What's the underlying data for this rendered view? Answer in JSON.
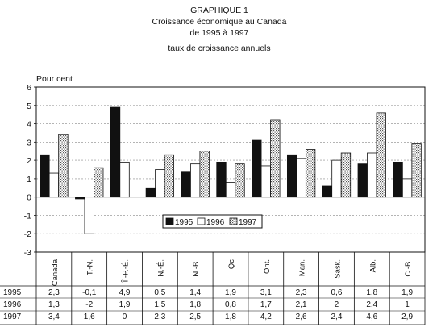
{
  "header": {
    "line1": "GRAPHIQUE 1",
    "line2": "Croissance économique au Canada",
    "line3": "de 1995 à 1997",
    "line4": "taux de croissance annuels"
  },
  "colors": {
    "s1995": "#111111",
    "s1996": "#ffffff",
    "s1997": "#d8d8d8"
  },
  "chart_data": {
    "type": "bar",
    "title": "GRAPHIQUE 1",
    "subtitle": "Croissance économique au Canada de 1995 à 1997 — taux de croissance annuels",
    "ylabel": "Pour cent",
    "xlabel": "",
    "ylim": [
      -3,
      6
    ],
    "yticks": [
      "6",
      "5",
      "4",
      "3",
      "2",
      "1",
      "0",
      "-1",
      "-2",
      "-3"
    ],
    "grid": true,
    "legend_position": "center",
    "categories": [
      "Canada",
      "T.-N.",
      "Î.-P.-É.",
      "N.-É.",
      "N.-B.",
      "Qc",
      "Ont.",
      "Man.",
      "Sask.",
      "Alb.",
      "C.-B."
    ],
    "series": [
      {
        "name": "1995",
        "values": [
          2.3,
          -0.1,
          4.9,
          0.5,
          1.4,
          1.9,
          3.1,
          2.3,
          0.6,
          1.8,
          1.9
        ],
        "labels": [
          "2,3",
          "-0,1",
          "4,9",
          "0,5",
          "1,4",
          "1,9",
          "3,1",
          "2,3",
          "0,6",
          "1,8",
          "1,9"
        ]
      },
      {
        "name": "1996",
        "values": [
          1.3,
          -2,
          1.9,
          1.5,
          1.8,
          0.8,
          1.7,
          2.1,
          2,
          2.4,
          1
        ],
        "labels": [
          "1,3",
          "-2",
          "1,9",
          "1,5",
          "1,8",
          "0,8",
          "1,7",
          "2,1",
          "2",
          "2,4",
          "1"
        ]
      },
      {
        "name": "1997",
        "values": [
          3.4,
          1.6,
          0,
          2.3,
          2.5,
          1.8,
          4.2,
          2.6,
          2.4,
          4.6,
          2.9
        ],
        "labels": [
          "3,4",
          "1,6",
          "0",
          "2,3",
          "2,5",
          "1,8",
          "4,2",
          "2,6",
          "2,4",
          "4,6",
          "2,9"
        ]
      }
    ]
  }
}
